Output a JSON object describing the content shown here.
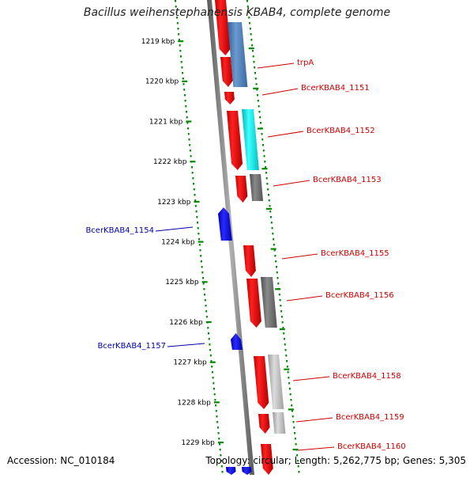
{
  "title": "Bacillus weihenstephanensis KBAB4, complete genome",
  "accession": "Accession: NC_010184",
  "topology": "Topology: circular; Length: 5,262,775 bp; Genes: 5,305",
  "colors": {
    "forward_gene": "#ff0000",
    "reverse_gene": "#0000ff",
    "label_forward": "#cc0000",
    "label_reverse": "#0000aa",
    "tick": "#008800",
    "backbone": "#808080",
    "cog_steel": "#4f81bd",
    "cog_cyan": "#00e5e5",
    "cog_darkgray": "#707070",
    "cog_lightgray": "#b8b8b8"
  },
  "scale_ticks": [
    {
      "label": "1219 kbp"
    },
    {
      "label": "1220 kbp"
    },
    {
      "label": "1221 kbp"
    },
    {
      "label": "1222 kbp"
    },
    {
      "label": "1223 kbp"
    },
    {
      "label": "1224 kbp"
    },
    {
      "label": "1225 kbp"
    },
    {
      "label": "1226 kbp"
    },
    {
      "label": "1227 kbp"
    },
    {
      "label": "1228 kbp"
    },
    {
      "label": "1229 kbp"
    }
  ],
  "gene_labels": [
    {
      "name": "trpA",
      "strand": "forward"
    },
    {
      "name": "BcerKBAB4_1151",
      "strand": "forward"
    },
    {
      "name": "BcerKBAB4_1152",
      "strand": "forward"
    },
    {
      "name": "BcerKBAB4_1153",
      "strand": "forward"
    },
    {
      "name": "BcerKBAB4_1154",
      "strand": "reverse"
    },
    {
      "name": "BcerKBAB4_1155",
      "strand": "forward"
    },
    {
      "name": "BcerKBAB4_1156",
      "strand": "forward"
    },
    {
      "name": "BcerKBAB4_1157",
      "strand": "reverse"
    },
    {
      "name": "BcerKBAB4_1158",
      "strand": "forward"
    },
    {
      "name": "BcerKBAB4_1159",
      "strand": "forward"
    },
    {
      "name": "BcerKBAB4_1160",
      "strand": "forward"
    }
  ]
}
